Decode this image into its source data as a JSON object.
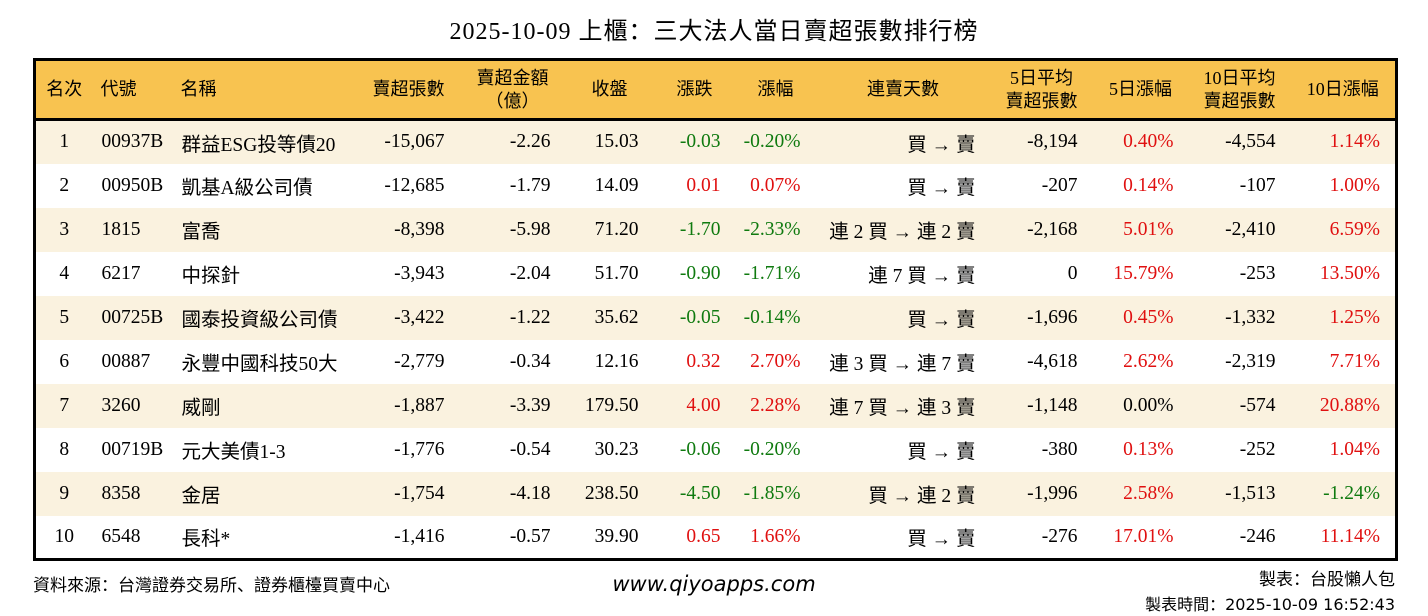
{
  "title": "2025-10-09 上櫃：三大法人當日賣超張數排行榜",
  "colors": {
    "header_bg": "#F8C350",
    "row_alt_bg": "#FAF2DF",
    "row_bg": "#FFFFFF",
    "up_red": "#E01010",
    "down_green": "#0F7A0F",
    "border": "#000000"
  },
  "table": {
    "columns": [
      {
        "key": "rank",
        "label": "名次",
        "align": "center",
        "colored": false
      },
      {
        "key": "code",
        "label": "代號",
        "align": "left",
        "colored": false
      },
      {
        "key": "name",
        "label": "名稱",
        "align": "left",
        "colored": false
      },
      {
        "key": "sell_volume",
        "label": "賣超張數",
        "align": "right",
        "colored": false
      },
      {
        "key": "sell_amount",
        "label": "賣超金額\n（億）",
        "align": "right",
        "colored": false
      },
      {
        "key": "close",
        "label": "收盤",
        "align": "right",
        "colored": false
      },
      {
        "key": "change",
        "label": "漲跌",
        "align": "right",
        "colored": true
      },
      {
        "key": "change_pct",
        "label": "漲幅",
        "align": "right",
        "colored": true
      },
      {
        "key": "streak",
        "label": "連賣天數",
        "align": "right",
        "colored": false
      },
      {
        "key": "avg5",
        "label": "5日平均\n賣超張數",
        "align": "right",
        "colored": false
      },
      {
        "key": "pct5",
        "label": "5日漲幅",
        "align": "right",
        "colored": true
      },
      {
        "key": "avg10",
        "label": "10日平均\n賣超張數",
        "align": "right",
        "colored": false
      },
      {
        "key": "pct10",
        "label": "10日漲幅",
        "align": "right",
        "colored": true
      }
    ],
    "rows": [
      {
        "rank": "1",
        "code": "00937B",
        "name": "群益ESG投等債20",
        "sell_volume": "-15,067",
        "sell_amount": "-2.26",
        "close": "15.03",
        "change": "-0.03",
        "change_pct": "-0.20%",
        "streak": "買 → 賣",
        "avg5": "-8,194",
        "pct5": "0.40%",
        "avg10": "-4,554",
        "pct10": "1.14%"
      },
      {
        "rank": "2",
        "code": "00950B",
        "name": "凱基A級公司債",
        "sell_volume": "-12,685",
        "sell_amount": "-1.79",
        "close": "14.09",
        "change": "0.01",
        "change_pct": "0.07%",
        "streak": "買 → 賣",
        "avg5": "-207",
        "pct5": "0.14%",
        "avg10": "-107",
        "pct10": "1.00%"
      },
      {
        "rank": "3",
        "code": "1815",
        "name": "富喬",
        "sell_volume": "-8,398",
        "sell_amount": "-5.98",
        "close": "71.20",
        "change": "-1.70",
        "change_pct": "-2.33%",
        "streak": "連 2 買 → 連 2 賣",
        "avg5": "-2,168",
        "pct5": "5.01%",
        "avg10": "-2,410",
        "pct10": "6.59%"
      },
      {
        "rank": "4",
        "code": "6217",
        "name": "中探針",
        "sell_volume": "-3,943",
        "sell_amount": "-2.04",
        "close": "51.70",
        "change": "-0.90",
        "change_pct": "-1.71%",
        "streak": "連 7 買 → 賣",
        "avg5": "0",
        "pct5": "15.79%",
        "avg10": "-253",
        "pct10": "13.50%"
      },
      {
        "rank": "5",
        "code": "00725B",
        "name": "國泰投資級公司債",
        "sell_volume": "-3,422",
        "sell_amount": "-1.22",
        "close": "35.62",
        "change": "-0.05",
        "change_pct": "-0.14%",
        "streak": "買 → 賣",
        "avg5": "-1,696",
        "pct5": "0.45%",
        "avg10": "-1,332",
        "pct10": "1.25%"
      },
      {
        "rank": "6",
        "code": "00887",
        "name": "永豐中國科技50大",
        "sell_volume": "-2,779",
        "sell_amount": "-0.34",
        "close": "12.16",
        "change": "0.32",
        "change_pct": "2.70%",
        "streak": "連 3 買 → 連 7 賣",
        "avg5": "-4,618",
        "pct5": "2.62%",
        "avg10": "-2,319",
        "pct10": "7.71%"
      },
      {
        "rank": "7",
        "code": "3260",
        "name": "威剛",
        "sell_volume": "-1,887",
        "sell_amount": "-3.39",
        "close": "179.50",
        "change": "4.00",
        "change_pct": "2.28%",
        "streak": "連 7 買 → 連 3 賣",
        "avg5": "-1,148",
        "pct5": "0.00%",
        "avg10": "-574",
        "pct10": "20.88%"
      },
      {
        "rank": "8",
        "code": "00719B",
        "name": "元大美債1-3",
        "sell_volume": "-1,776",
        "sell_amount": "-0.54",
        "close": "30.23",
        "change": "-0.06",
        "change_pct": "-0.20%",
        "streak": "買 → 賣",
        "avg5": "-380",
        "pct5": "0.13%",
        "avg10": "-252",
        "pct10": "1.04%"
      },
      {
        "rank": "9",
        "code": "8358",
        "name": "金居",
        "sell_volume": "-1,754",
        "sell_amount": "-4.18",
        "close": "238.50",
        "change": "-4.50",
        "change_pct": "-1.85%",
        "streak": "買 → 連 2 賣",
        "avg5": "-1,996",
        "pct5": "2.58%",
        "avg10": "-1,513",
        "pct10": "-1.24%"
      },
      {
        "rank": "10",
        "code": "6548",
        "name": "長科*",
        "sell_volume": "-1,416",
        "sell_amount": "-0.57",
        "close": "39.90",
        "change": "0.65",
        "change_pct": "1.66%",
        "streak": "買 → 賣",
        "avg5": "-276",
        "pct5": "17.01%",
        "avg10": "-246",
        "pct10": "11.14%"
      }
    ]
  },
  "footer": {
    "source": "資料來源：台灣證券交易所、證券櫃檯買賣中心",
    "website": "www.qiyoapps.com",
    "credit": "製表：台股懶人包",
    "generated": "製表時間：2025-10-09 16:52:43"
  },
  "chart_data": {
    "type": "table",
    "title": "2025-10-09 上櫃：三大法人當日賣超張數排行榜",
    "columns": [
      "名次",
      "代號",
      "名稱",
      "賣超張數",
      "賣超金額（億）",
      "收盤",
      "漲跌",
      "漲幅",
      "連賣天數",
      "5日平均賣超張數",
      "5日漲幅",
      "10日平均賣超張數",
      "10日漲幅"
    ],
    "rows": [
      [
        "1",
        "00937B",
        "群益ESG投等債20",
        "-15,067",
        "-2.26",
        "15.03",
        "-0.03",
        "-0.20%",
        "買 → 賣",
        "-8,194",
        "0.40%",
        "-4,554",
        "1.14%"
      ],
      [
        "2",
        "00950B",
        "凱基A級公司債",
        "-12,685",
        "-1.79",
        "14.09",
        "0.01",
        "0.07%",
        "買 → 賣",
        "-207",
        "0.14%",
        "-107",
        "1.00%"
      ],
      [
        "3",
        "1815",
        "富喬",
        "-8,398",
        "-5.98",
        "71.20",
        "-1.70",
        "-2.33%",
        "連 2 買 → 連 2 賣",
        "-2,168",
        "5.01%",
        "-2,410",
        "6.59%"
      ],
      [
        "4",
        "6217",
        "中探針",
        "-3,943",
        "-2.04",
        "51.70",
        "-0.90",
        "-1.71%",
        "連 7 買 → 賣",
        "0",
        "15.79%",
        "-253",
        "13.50%"
      ],
      [
        "5",
        "00725B",
        "國泰投資級公司債",
        "-3,422",
        "-1.22",
        "35.62",
        "-0.05",
        "-0.14%",
        "買 → 賣",
        "-1,696",
        "0.45%",
        "-1,332",
        "1.25%"
      ],
      [
        "6",
        "00887",
        "永豐中國科技50大",
        "-2,779",
        "-0.34",
        "12.16",
        "0.32",
        "2.70%",
        "連 3 買 → 連 7 賣",
        "-4,618",
        "2.62%",
        "-2,319",
        "7.71%"
      ],
      [
        "7",
        "3260",
        "威剛",
        "-1,887",
        "-3.39",
        "179.50",
        "4.00",
        "2.28%",
        "連 7 買 → 連 3 賣",
        "-1,148",
        "0.00%",
        "-574",
        "20.88%"
      ],
      [
        "8",
        "00719B",
        "元大美債1-3",
        "-1,776",
        "-0.54",
        "30.23",
        "-0.06",
        "-0.20%",
        "買 → 賣",
        "-380",
        "0.13%",
        "-252",
        "1.04%"
      ],
      [
        "9",
        "8358",
        "金居",
        "-1,754",
        "-4.18",
        "238.50",
        "-4.50",
        "-1.85%",
        "買 → 連 2 賣",
        "-1,996",
        "2.58%",
        "-1,513",
        "-1.24%"
      ],
      [
        "10",
        "6548",
        "長科*",
        "-1,416",
        "-0.57",
        "39.90",
        "0.65",
        "1.66%",
        "買 → 賣",
        "-276",
        "17.01%",
        "-246",
        "11.14%"
      ]
    ],
    "color_rule": "positive values red #E01010, negative values green #0F7A0F, zero black (applies to 漲跌/漲幅/5日漲幅/10日漲幅)",
    "layout": {
      "header_bg": "#F8C350",
      "alt_row_bg": "#FAF2DF",
      "grid": "outer border + header divider only"
    }
  }
}
